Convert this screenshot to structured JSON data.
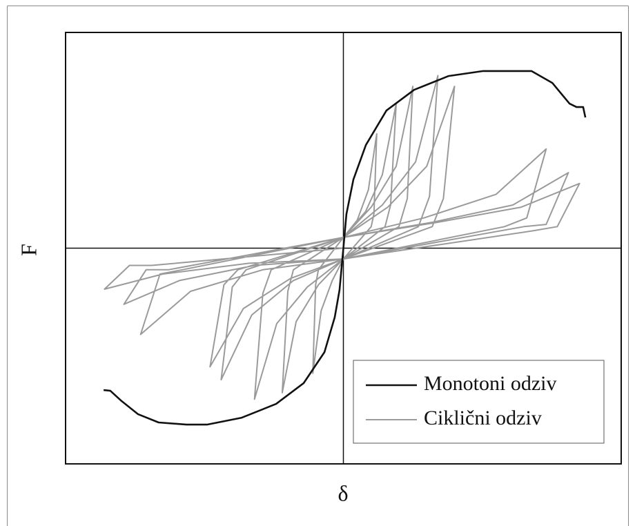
{
  "chart_data": {
    "type": "line",
    "xlabel": "δ",
    "ylabel": "F",
    "xlim": [
      -1,
      1
    ],
    "ylim": [
      -1,
      1
    ],
    "legend": "lower right",
    "series": [
      {
        "name": "Ciklični odziv",
        "color": "#9a9a9a",
        "x": [
          0,
          0,
          0.05,
          0.09,
          0.12,
          0.11,
          0.1,
          0,
          -0.04,
          -0.08,
          -0.11,
          -0.1,
          -0.09,
          0,
          0.08,
          0.14,
          0.19,
          0.17,
          0.15,
          0,
          -0.09,
          -0.17,
          -0.22,
          -0.2,
          -0.18,
          0,
          0.1,
          0.19,
          0.25,
          0.23,
          0.2,
          0,
          -0.13,
          -0.24,
          -0.32,
          -0.29,
          -0.26,
          0,
          0.14,
          0.26,
          0.34,
          0.31,
          0.27,
          0,
          -0.18,
          -0.33,
          -0.44,
          -0.4,
          -0.35,
          0,
          0.16,
          0.3,
          0.4,
          0.36,
          0.32,
          0,
          -0.19,
          -0.36,
          -0.48,
          -0.43,
          -0.38,
          0,
          0.29,
          0.55,
          0.73,
          0.66,
          0.58,
          0,
          -0.29,
          -0.55,
          -0.73,
          -0.66,
          -0.58,
          0,
          0.32,
          0.61,
          0.81,
          0.73,
          0.65,
          0,
          -0.32,
          -0.59,
          -0.79,
          -0.71,
          -0.63,
          0,
          0.34,
          0.64,
          0.85,
          0.77,
          0.68,
          0,
          -0.34,
          -0.65,
          -0.86,
          -0.77,
          -0.69,
          0
        ],
        "values": [
          0,
          0.05,
          0.13,
          0.27,
          0.53,
          0.16,
          0.1,
          -0.05,
          -0.15,
          -0.29,
          -0.58,
          -0.17,
          -0.1,
          0.05,
          0.17,
          0.34,
          0.67,
          0.2,
          0.1,
          -0.05,
          -0.17,
          -0.34,
          -0.67,
          -0.2,
          -0.1,
          0.05,
          0.19,
          0.38,
          0.75,
          0.23,
          0.1,
          -0.05,
          -0.18,
          -0.35,
          -0.7,
          -0.21,
          -0.1,
          0.05,
          0.2,
          0.4,
          0.8,
          0.24,
          0.1,
          -0.05,
          -0.15,
          -0.31,
          -0.61,
          -0.18,
          -0.1,
          0.05,
          0.19,
          0.38,
          0.75,
          0.23,
          0.1,
          -0.05,
          -0.14,
          -0.28,
          -0.55,
          -0.17,
          -0.1,
          0.05,
          0.14,
          0.25,
          0.46,
          0.14,
          0.1,
          -0.05,
          -0.1,
          -0.2,
          -0.4,
          -0.12,
          -0.1,
          0.05,
          0.12,
          0.2,
          0.35,
          0.11,
          0.1,
          -0.05,
          -0.08,
          -0.15,
          -0.26,
          -0.1,
          -0.1,
          0.05,
          0.12,
          0.19,
          0.3,
          0.1,
          0.08,
          -0.05,
          -0.07,
          -0.12,
          -0.19,
          -0.08,
          -0.08,
          0
        ]
      },
      {
        "name": "Monotoni odziv",
        "color": "#111111",
        "x": [
          -0.863,
          -0.839,
          -0.801,
          -0.739,
          -0.665,
          -0.565,
          -0.491,
          -0.366,
          -0.242,
          -0.143,
          -0.068,
          -0.031,
          -0.014,
          0,
          0.011,
          0.036,
          0.081,
          0.155,
          0.255,
          0.379,
          0.503,
          0.677,
          0.752,
          0.814,
          0.839,
          0.863,
          0.871
        ],
        "values": [
          -0.658,
          -0.661,
          -0.706,
          -0.77,
          -0.808,
          -0.818,
          -0.818,
          -0.786,
          -0.722,
          -0.626,
          -0.482,
          -0.32,
          -0.194,
          0,
          0.158,
          0.318,
          0.478,
          0.638,
          0.734,
          0.798,
          0.821,
          0.821,
          0.766,
          0.67,
          0.654,
          0.654,
          0.606
        ]
      }
    ]
  }
}
